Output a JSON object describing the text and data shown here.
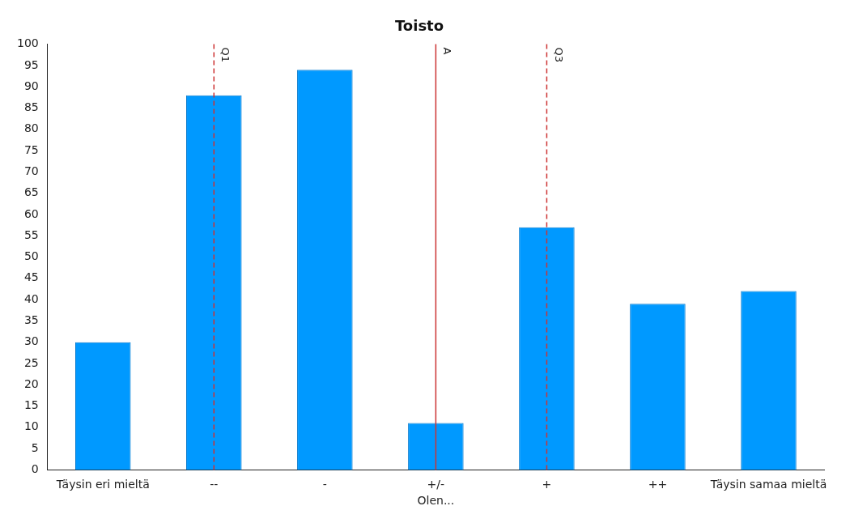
{
  "chart_data": {
    "type": "bar",
    "title": "Toisto",
    "xlabel": "Olen...",
    "categories": [
      "Täysin eri mieltä",
      "--",
      "-",
      "+/-",
      "+",
      "++",
      "Täysin samaa mieltä"
    ],
    "values": [
      30,
      88,
      94,
      11,
      57,
      39,
      42
    ],
    "color": "#0099ff",
    "ylim": [
      0,
      100
    ],
    "yticks": [
      0,
      5,
      10,
      15,
      20,
      25,
      30,
      35,
      40,
      45,
      50,
      55,
      60,
      65,
      70,
      75,
      80,
      85,
      90,
      95,
      100
    ],
    "grid": false,
    "legend": false,
    "ref_lines": [
      {
        "axis": "x",
        "value": "--",
        "label": "Q1",
        "color": "#cc3333",
        "line_style": "dashed"
      },
      {
        "axis": "x",
        "value": "+/-",
        "label": "A",
        "color": "#cc3333",
        "line_style": "solid"
      },
      {
        "axis": "x",
        "value": "+",
        "label": "Q3",
        "color": "#cc3333",
        "line_style": "dashed"
      }
    ]
  }
}
